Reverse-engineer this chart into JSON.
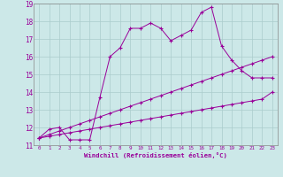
{
  "xlabel": "Windchill (Refroidissement éolien,°C)",
  "bg_color": "#cce8e8",
  "line_color": "#990099",
  "grid_color": "#aacccc",
  "xlim": [
    0,
    23
  ],
  "ylim": [
    11,
    19
  ],
  "xticks": [
    0,
    1,
    2,
    3,
    4,
    5,
    6,
    7,
    8,
    9,
    10,
    11,
    12,
    13,
    14,
    15,
    16,
    17,
    18,
    19,
    20,
    21,
    22,
    23
  ],
  "yticks": [
    11,
    12,
    13,
    14,
    15,
    16,
    17,
    18,
    19
  ],
  "s1_x": [
    0,
    1,
    2,
    3,
    4,
    5,
    6,
    7,
    8,
    9,
    10,
    11,
    12,
    13,
    14,
    15,
    16,
    17,
    18,
    19,
    20,
    21,
    22,
    23
  ],
  "s1_y": [
    11.4,
    11.9,
    12.0,
    11.3,
    11.3,
    11.3,
    13.7,
    16.0,
    16.5,
    17.6,
    17.6,
    17.9,
    17.6,
    16.9,
    17.2,
    17.5,
    18.5,
    18.8,
    16.6,
    15.8,
    15.2,
    14.8,
    14.8,
    14.8
  ],
  "s2_x": [
    0,
    1,
    2,
    3,
    4,
    5,
    6,
    7,
    8,
    9,
    10,
    11,
    12,
    13,
    14,
    15,
    16,
    17,
    18,
    19,
    20,
    21,
    22,
    23
  ],
  "s2_y": [
    11.4,
    11.6,
    11.8,
    12.0,
    12.2,
    12.4,
    12.6,
    12.8,
    13.0,
    13.2,
    13.4,
    13.6,
    13.8,
    14.0,
    14.2,
    14.4,
    14.6,
    14.8,
    15.0,
    15.2,
    15.4,
    15.6,
    15.8,
    16.0
  ],
  "s3_x": [
    0,
    1,
    2,
    3,
    4,
    5,
    6,
    7,
    8,
    9,
    10,
    11,
    12,
    13,
    14,
    15,
    16,
    17,
    18,
    19,
    20,
    21,
    22,
    23
  ],
  "s3_y": [
    11.4,
    11.5,
    11.6,
    11.7,
    11.8,
    11.9,
    12.0,
    12.1,
    12.2,
    12.3,
    12.4,
    12.5,
    12.6,
    12.7,
    12.8,
    12.9,
    13.0,
    13.1,
    13.2,
    13.3,
    13.4,
    13.5,
    13.6,
    14.0
  ]
}
